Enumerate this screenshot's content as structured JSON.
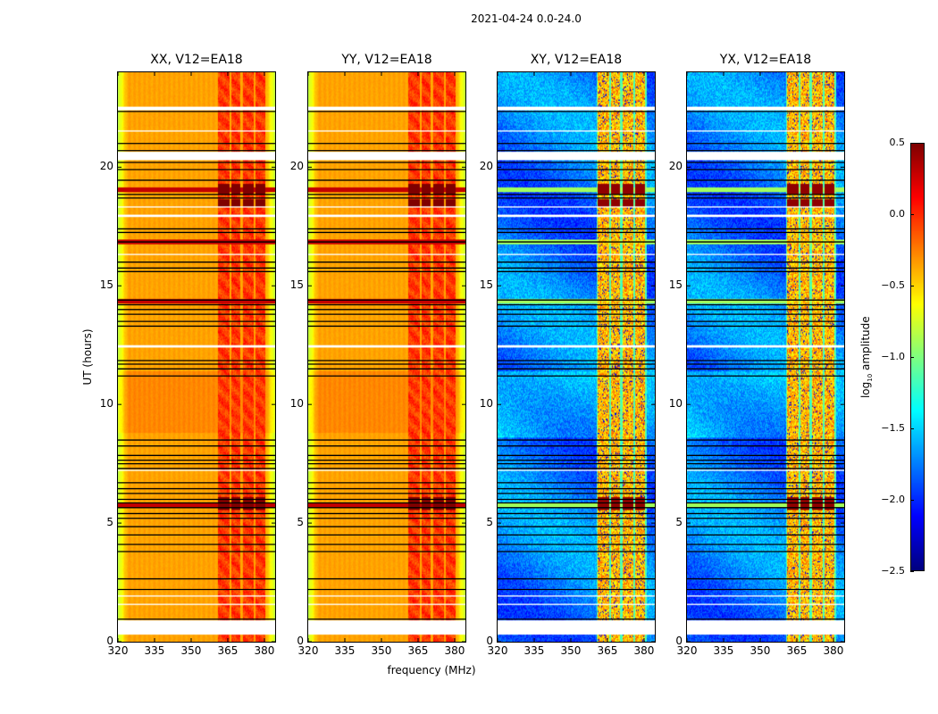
{
  "suptitle": "2021-04-24 0.0-24.0",
  "chart_data": {
    "type": "heatmap",
    "xlabel": "frequency (MHz)",
    "ylabel": "UT (hours)",
    "xlim": [
      320,
      384.4
    ],
    "ylim": [
      0,
      24
    ],
    "xticks": [
      320,
      335,
      350,
      365,
      380
    ],
    "yticks": [
      0,
      5,
      10,
      15,
      20
    ],
    "colormap": "jet",
    "colorbar": {
      "label_main": "log",
      "label_sub": "10",
      "label_rest": " amplitude",
      "range": [
        -2.5,
        0.5
      ],
      "ticks": [
        "0.5",
        "0.0",
        "−0.5",
        "−1.0",
        "−1.5",
        "−2.0",
        "−2.5"
      ],
      "tick_values": [
        0.5,
        0.0,
        -0.5,
        -1.0,
        -1.5,
        -2.0,
        -2.5
      ]
    },
    "panels": [
      {
        "title": "XX, V12=EA18",
        "kind": "parallel",
        "show_ylabel": true
      },
      {
        "title": "YY, V12=EA18",
        "kind": "parallel",
        "show_ylabel": false
      },
      {
        "title": "XY, V12=EA18",
        "kind": "cross",
        "show_ylabel": false
      },
      {
        "title": "YX, V12=EA18",
        "kind": "cross",
        "show_ylabel": false
      }
    ],
    "rfi_band_mhz": [
      [
        361,
        365.9
      ],
      [
        366.6,
        370.3
      ],
      [
        371.2,
        375.6
      ],
      [
        376.3,
        380.4
      ]
    ],
    "flagged_hours_white": [
      [
        22.42,
        22.55
      ],
      [
        21.5,
        21.55
      ],
      [
        20.3,
        20.65
      ],
      [
        18.3,
        18.35
      ],
      [
        17.9,
        18.0
      ],
      [
        16.3,
        16.35
      ],
      [
        12.4,
        12.5
      ],
      [
        7.2,
        7.25
      ],
      [
        1.55,
        1.6
      ],
      [
        1.9,
        1.95
      ],
      [
        0.3,
        0.9
      ]
    ],
    "flag_line_hours": [
      22.35,
      21.0,
      20.7,
      20.2,
      19.9,
      19.45,
      18.85,
      18.7,
      17.4,
      17.25,
      16.85,
      16.0,
      15.75,
      15.6,
      14.4,
      14.2,
      14.0,
      13.8,
      13.5,
      13.3,
      11.85,
      11.7,
      11.5,
      11.2,
      8.5,
      8.25,
      7.85,
      7.65,
      7.5,
      7.3,
      6.7,
      6.45,
      6.25,
      6.0,
      5.85,
      5.65,
      5.4,
      5.2,
      4.85,
      4.5,
      4.1,
      3.8,
      2.65,
      2.2,
      0.95
    ],
    "hot_rows_hours": [
      19.05,
      16.85,
      14.35,
      5.75
    ],
    "hot_band_events_hours": [
      [
        18.85,
        19.3
      ],
      [
        18.3,
        18.65
      ],
      [
        5.55,
        6.1
      ]
    ]
  }
}
